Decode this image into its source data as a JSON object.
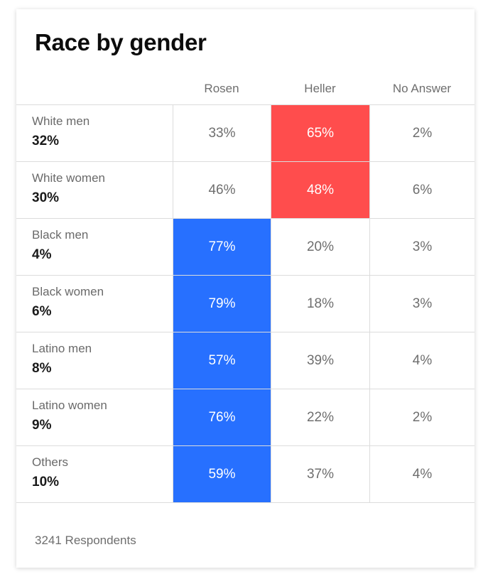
{
  "chart_data": {
    "type": "table",
    "title": "Race by gender",
    "columns": [
      "Rosen",
      "Heller",
      "No Answer"
    ],
    "rows": [
      {
        "label": "White men",
        "share": "32%",
        "values": [
          "33%",
          "65%",
          "2%"
        ],
        "winner": "Heller"
      },
      {
        "label": "White women",
        "share": "30%",
        "values": [
          "46%",
          "48%",
          "6%"
        ],
        "winner": "Heller"
      },
      {
        "label": "Black men",
        "share": "4%",
        "values": [
          "77%",
          "20%",
          "3%"
        ],
        "winner": "Rosen"
      },
      {
        "label": "Black women",
        "share": "6%",
        "values": [
          "79%",
          "18%",
          "3%"
        ],
        "winner": "Rosen"
      },
      {
        "label": "Latino men",
        "share": "8%",
        "values": [
          "57%",
          "39%",
          "4%"
        ],
        "winner": "Rosen"
      },
      {
        "label": "Latino women",
        "share": "9%",
        "values": [
          "76%",
          "22%",
          "2%"
        ],
        "winner": "Rosen"
      },
      {
        "label": "Others",
        "share": "10%",
        "values": [
          "59%",
          "37%",
          "4%"
        ],
        "winner": "Rosen"
      }
    ],
    "highlight_colors": {
      "Rosen": "#2770ff",
      "Heller": "#ff4d4d"
    },
    "footer": "3241 Respondents"
  }
}
